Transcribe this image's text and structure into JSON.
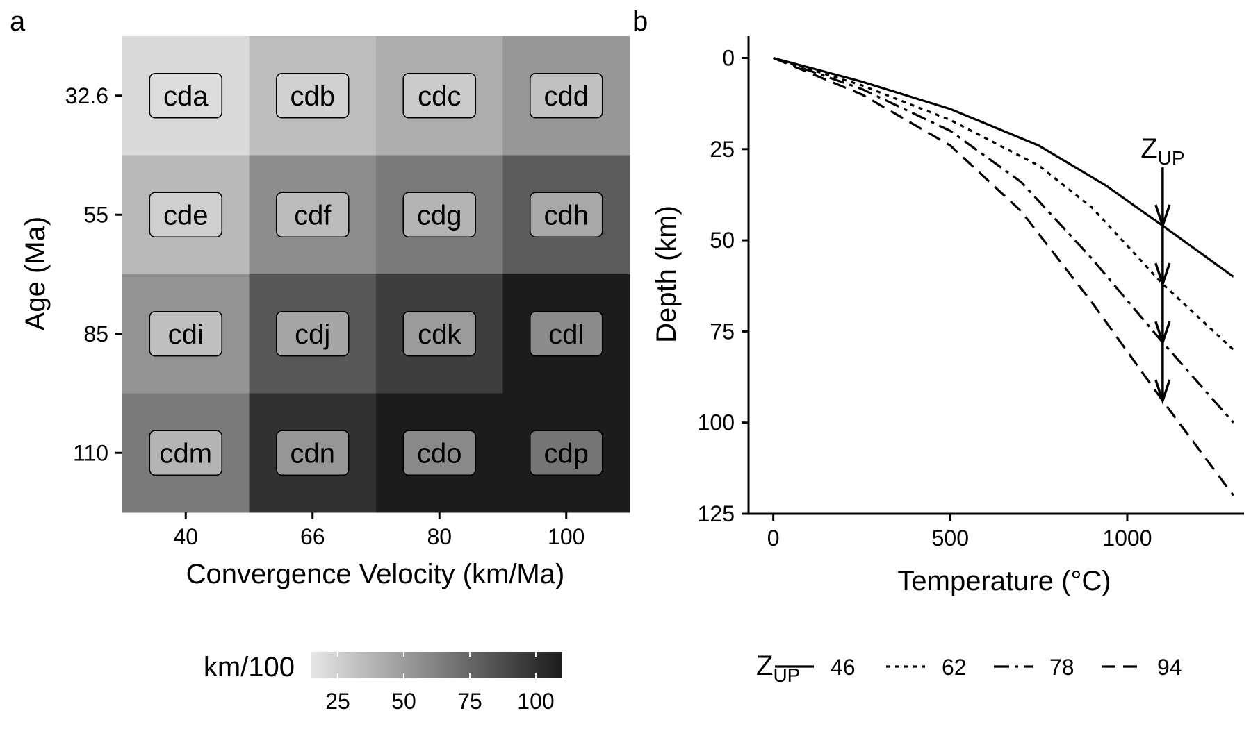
{
  "chart_data": [
    {
      "panel_label": "a",
      "type": "heatmap",
      "xlabel": "Convergence Velocity (km/Ma)",
      "ylabel": "Age (Ma)",
      "x": [
        "40",
        "66",
        "80",
        "100"
      ],
      "y": [
        "32.6",
        "55",
        "85",
        "110"
      ],
      "cells": [
        [
          {
            "label": "cda",
            "value": 21
          },
          {
            "label": "cdb",
            "value": 34
          },
          {
            "label": "cdc",
            "value": 42
          },
          {
            "label": "cdd",
            "value": 52
          }
        ],
        [
          {
            "label": "cde",
            "value": 36
          },
          {
            "label": "cdf",
            "value": 57
          },
          {
            "label": "cdg",
            "value": 66
          },
          {
            "label": "cdh",
            "value": 80
          }
        ],
        [
          {
            "label": "cdi",
            "value": 54
          },
          {
            "label": "cdj",
            "value": 82
          },
          {
            "label": "cdk",
            "value": 94
          },
          {
            "label": "cdl",
            "value": 112
          }
        ],
        [
          {
            "label": "cdm",
            "value": 66
          },
          {
            "label": "cdn",
            "value": 100
          },
          {
            "label": "cdo",
            "value": 114
          },
          {
            "label": "cdp",
            "value": 137
          }
        ]
      ],
      "legend": {
        "title": "km/100",
        "ticks": [
          "25",
          "50",
          "75",
          "100"
        ],
        "tick_values": [
          25,
          50,
          75,
          100
        ],
        "range": [
          15,
          110
        ],
        "colors": [
          "#e6e6e6",
          "#1c1c1c"
        ]
      }
    },
    {
      "panel_label": "b",
      "type": "line",
      "xlabel": "Temperature",
      "xlabel_unit": "(°C)",
      "ylabel": "Depth (km)",
      "xlim": [
        -70,
        1330
      ],
      "ylim": [
        125,
        -6
      ],
      "xticks": [
        0,
        500,
        1000
      ],
      "yticks": [
        0,
        25,
        50,
        75,
        100,
        125
      ],
      "y_reversed": true,
      "annotation": {
        "base": "Z",
        "sub": "UP",
        "temperature": 1100,
        "depth_start": 30
      },
      "series": [
        {
          "name": "46",
          "dash": "solid",
          "x": [
            0,
            250,
            500,
            750,
            940,
            1100,
            1300
          ],
          "y": [
            0,
            6.5,
            14,
            24,
            35,
            46,
            60
          ]
        },
        {
          "name": "62",
          "dash": "dotted",
          "x": [
            0,
            250,
            500,
            750,
            900,
            1100,
            1300
          ],
          "y": [
            0,
            7.5,
            17,
            29.5,
            41,
            62,
            80
          ]
        },
        {
          "name": "78",
          "dash": "dashdot",
          "x": [
            0,
            250,
            500,
            700,
            900,
            1100,
            1300
          ],
          "y": [
            0,
            8.5,
            20,
            34,
            55,
            78,
            100
          ]
        },
        {
          "name": "94",
          "dash": "dashed",
          "x": [
            0,
            250,
            500,
            700,
            900,
            1100,
            1300
          ],
          "y": [
            0,
            10,
            24,
            42,
            67,
            94,
            120
          ]
        }
      ],
      "legend": {
        "title_base": "Z",
        "title_sub": "UP",
        "position": "bottom"
      }
    }
  ]
}
